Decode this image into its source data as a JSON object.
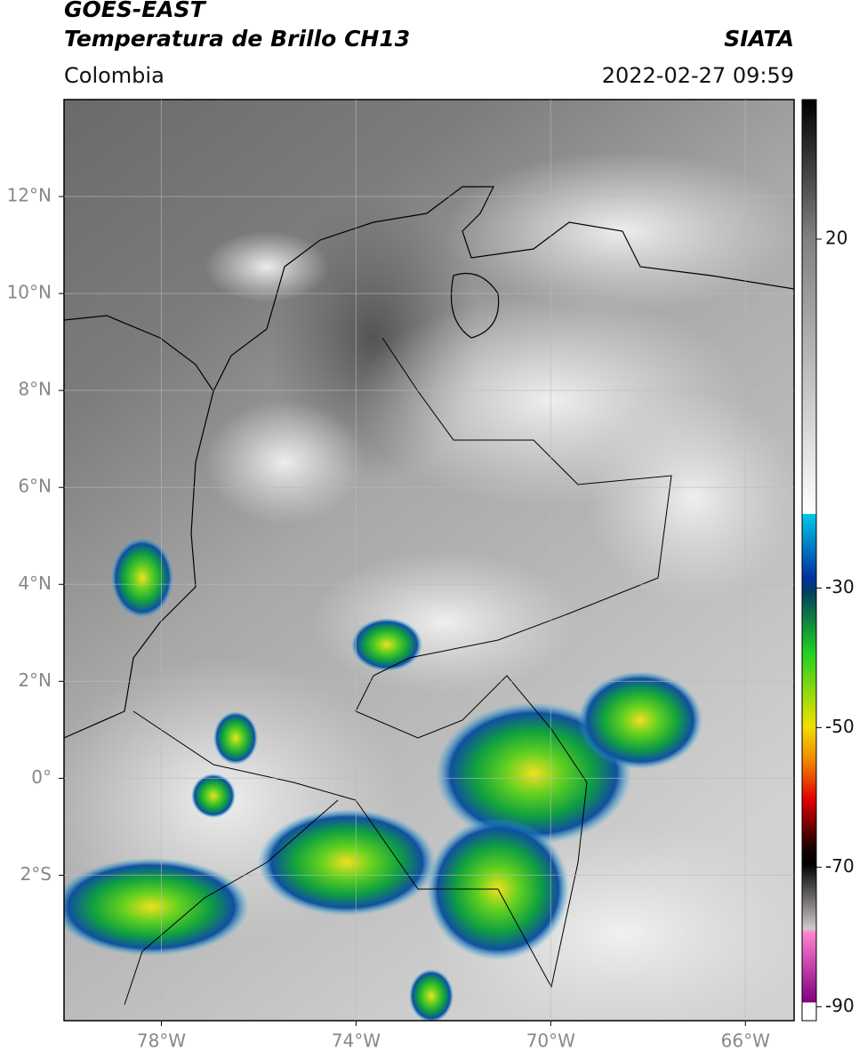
{
  "header": {
    "title": "GOES-EAST",
    "subtitle": "Temperatura de Brillo CH13",
    "region": "Colombia",
    "source": "SIATA",
    "datetime": "2022-02-27 09:59"
  },
  "map": {
    "lonlim": [
      -80,
      -65
    ],
    "latlim": [
      -5,
      14
    ],
    "lon_ticks": [
      {
        "value": -78,
        "label": "78°W"
      },
      {
        "value": -74,
        "label": "74°W"
      },
      {
        "value": -70,
        "label": "70°W"
      },
      {
        "value": -66,
        "label": "66°W"
      }
    ],
    "lat_ticks": [
      {
        "value": 12,
        "label": "12°N"
      },
      {
        "value": 10,
        "label": "10°N"
      },
      {
        "value": 8,
        "label": "8°N"
      },
      {
        "value": 6,
        "label": "6°N"
      },
      {
        "value": 4,
        "label": "4°N"
      },
      {
        "value": 2,
        "label": "2°N"
      },
      {
        "value": 0,
        "label": "0°"
      },
      {
        "value": -2,
        "label": "2°S"
      }
    ],
    "grid": true
  },
  "colorbar": {
    "clim": [
      -92,
      40
    ],
    "ticks": [
      20,
      -30,
      -50,
      -70,
      -90
    ]
  }
}
